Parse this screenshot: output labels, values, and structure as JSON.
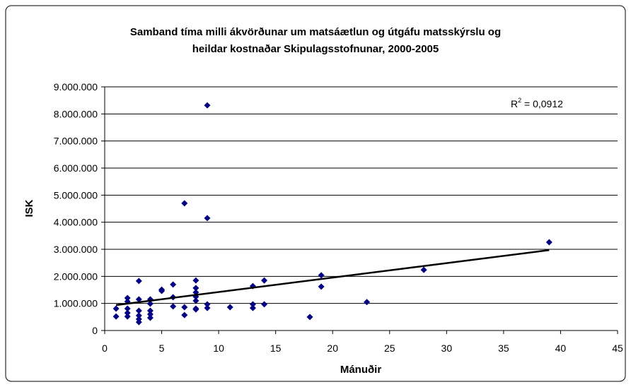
{
  "chart_data": {
    "type": "scatter",
    "title": [
      "Samband tíma milli ákvörðunar um matsáætlun og útgáfu matsskýrslu og",
      "heildar kostnaðar Skipulagsstofnunar, 2000-2005"
    ],
    "x_label": "Mánuðir",
    "y_label": "ISK",
    "annotation": {
      "base": "R",
      "sup": "2",
      "rest": " = 0,0912"
    },
    "series": [
      {
        "color": "#000080",
        "x": [
          1,
          1,
          2,
          2,
          2,
          2,
          2,
          3,
          3,
          3,
          3,
          3,
          3,
          4,
          4,
          4,
          4,
          4,
          5,
          5,
          6,
          6,
          6,
          7,
          7,
          7,
          8,
          8,
          8,
          8,
          8,
          8,
          8,
          9,
          9,
          9,
          9,
          11,
          13,
          13,
          13,
          14,
          14,
          18,
          19,
          19,
          23,
          28,
          39
        ],
        "values": [
          810000,
          520000,
          1200000,
          1070000,
          810000,
          650000,
          520000,
          1830000,
          1150000,
          730000,
          550000,
          420000,
          310000,
          1150000,
          990000,
          730000,
          600000,
          470000,
          1510000,
          1460000,
          1700000,
          1230000,
          890000,
          4700000,
          860000,
          570000,
          1850000,
          1570000,
          1410000,
          1250000,
          1100000,
          810000,
          780000,
          8320000,
          4150000,
          970000,
          830000,
          860000,
          1640000,
          970000,
          830000,
          1850000,
          970000,
          500000,
          2040000,
          1620000,
          1050000,
          2240000,
          3260000
        ]
      }
    ],
    "trendline": {
      "color": "#000000",
      "x": [
        1,
        39
      ],
      "values": [
        940000,
        2970000
      ]
    },
    "xlim": [
      0,
      45
    ],
    "xticks": [
      0,
      5,
      10,
      15,
      20,
      25,
      30,
      35,
      40,
      45
    ],
    "ylim": [
      0,
      9000000
    ],
    "yticks": [
      0,
      {
        "value": 1000000,
        "label": "1.000.000"
      },
      {
        "value": 2000000,
        "label": "2.000.000"
      },
      {
        "value": 3000000,
        "label": "3.000.000"
      },
      {
        "value": 4000000,
        "label": "4.000.000"
      },
      {
        "value": 5000000,
        "label": "5.000.000"
      },
      {
        "value": 6000000,
        "label": "6.000.000"
      },
      {
        "value": 7000000,
        "label": "7.000.000"
      },
      {
        "value": 8000000,
        "label": "8.000.000"
      },
      {
        "value": 9000000,
        "label": "9.000.000"
      }
    ],
    "grid": true
  }
}
